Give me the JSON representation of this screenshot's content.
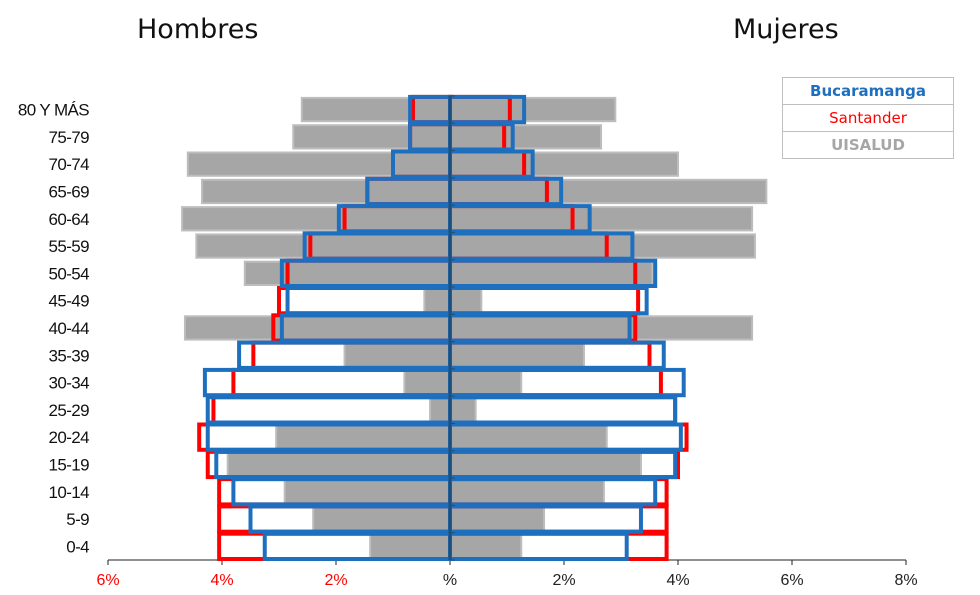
{
  "chart_data": {
    "type": "bar",
    "subtype": "population-pyramid",
    "left_title": "Hombres",
    "right_title": "Mujeres",
    "categories": [
      "0-4",
      "5-9",
      "10-14",
      "15-19",
      "20-24",
      "25-29",
      "30-34",
      "35-39",
      "40-44",
      "45-49",
      "50-54",
      "55-59",
      "60-64",
      "65-69",
      "70-74",
      "75-79",
      "80 Y MÁS"
    ],
    "x_ticks": [
      {
        "value": -6,
        "label": "6%",
        "color": "#ff0000"
      },
      {
        "value": -4,
        "label": "4%",
        "color": "#ff0000"
      },
      {
        "value": -2,
        "label": "2%",
        "color": "#ff0000"
      },
      {
        "value": 0,
        "label": "%",
        "color": "#222222"
      },
      {
        "value": 2,
        "label": "2%",
        "color": "#222222"
      },
      {
        "value": 4,
        "label": "4%",
        "color": "#222222"
      },
      {
        "value": 6,
        "label": "6%",
        "color": "#222222"
      },
      {
        "value": 8,
        "label": "8%",
        "color": "#222222"
      }
    ],
    "xlim": [
      -6,
      8
    ],
    "series": [
      {
        "name": "UISALUD",
        "color": "#a6a6a6",
        "style": "filled",
        "male": [
          1.4,
          2.4,
          2.9,
          3.9,
          3.05,
          0.35,
          0.8,
          1.85,
          4.65,
          0.45,
          3.6,
          4.45,
          4.7,
          4.35,
          4.6,
          2.75,
          2.6
        ],
        "female": [
          1.25,
          1.65,
          2.7,
          3.35,
          2.75,
          0.45,
          1.25,
          2.35,
          5.3,
          0.55,
          3.55,
          5.35,
          5.3,
          5.55,
          4.0,
          2.65,
          2.9
        ]
      },
      {
        "name": "Santander",
        "color": "#ff0000",
        "style": "outline",
        "male": [
          4.05,
          4.05,
          4.05,
          4.25,
          4.4,
          4.15,
          3.8,
          3.45,
          3.1,
          3.0,
          2.85,
          2.45,
          1.85,
          1.45,
          1.0,
          0.7,
          0.65
        ],
        "female": [
          3.8,
          3.8,
          3.8,
          4.0,
          4.15,
          3.95,
          3.7,
          3.5,
          3.25,
          3.3,
          3.25,
          2.75,
          2.15,
          1.7,
          1.3,
          0.95,
          1.05
        ]
      },
      {
        "name": "Bucaramanga",
        "color": "#1f6fbf",
        "style": "outline",
        "male": [
          3.25,
          3.5,
          3.8,
          4.1,
          4.25,
          4.25,
          4.3,
          3.7,
          2.95,
          2.85,
          2.95,
          2.55,
          1.95,
          1.45,
          1.0,
          0.7,
          0.7
        ],
        "female": [
          3.1,
          3.35,
          3.6,
          3.95,
          4.05,
          3.95,
          4.1,
          3.75,
          3.15,
          3.45,
          3.6,
          3.2,
          2.45,
          1.95,
          1.45,
          1.1,
          1.3
        ]
      }
    ],
    "legend": [
      {
        "label": "Bucaramanga",
        "color": "#1f6fbf",
        "weight": "bold"
      },
      {
        "label": "Santander",
        "color": "#ff0000",
        "weight": "normal"
      },
      {
        "label": "UISALUD",
        "color": "#a6a6a6",
        "weight": "bold"
      }
    ],
    "legend_position": "top-right"
  }
}
